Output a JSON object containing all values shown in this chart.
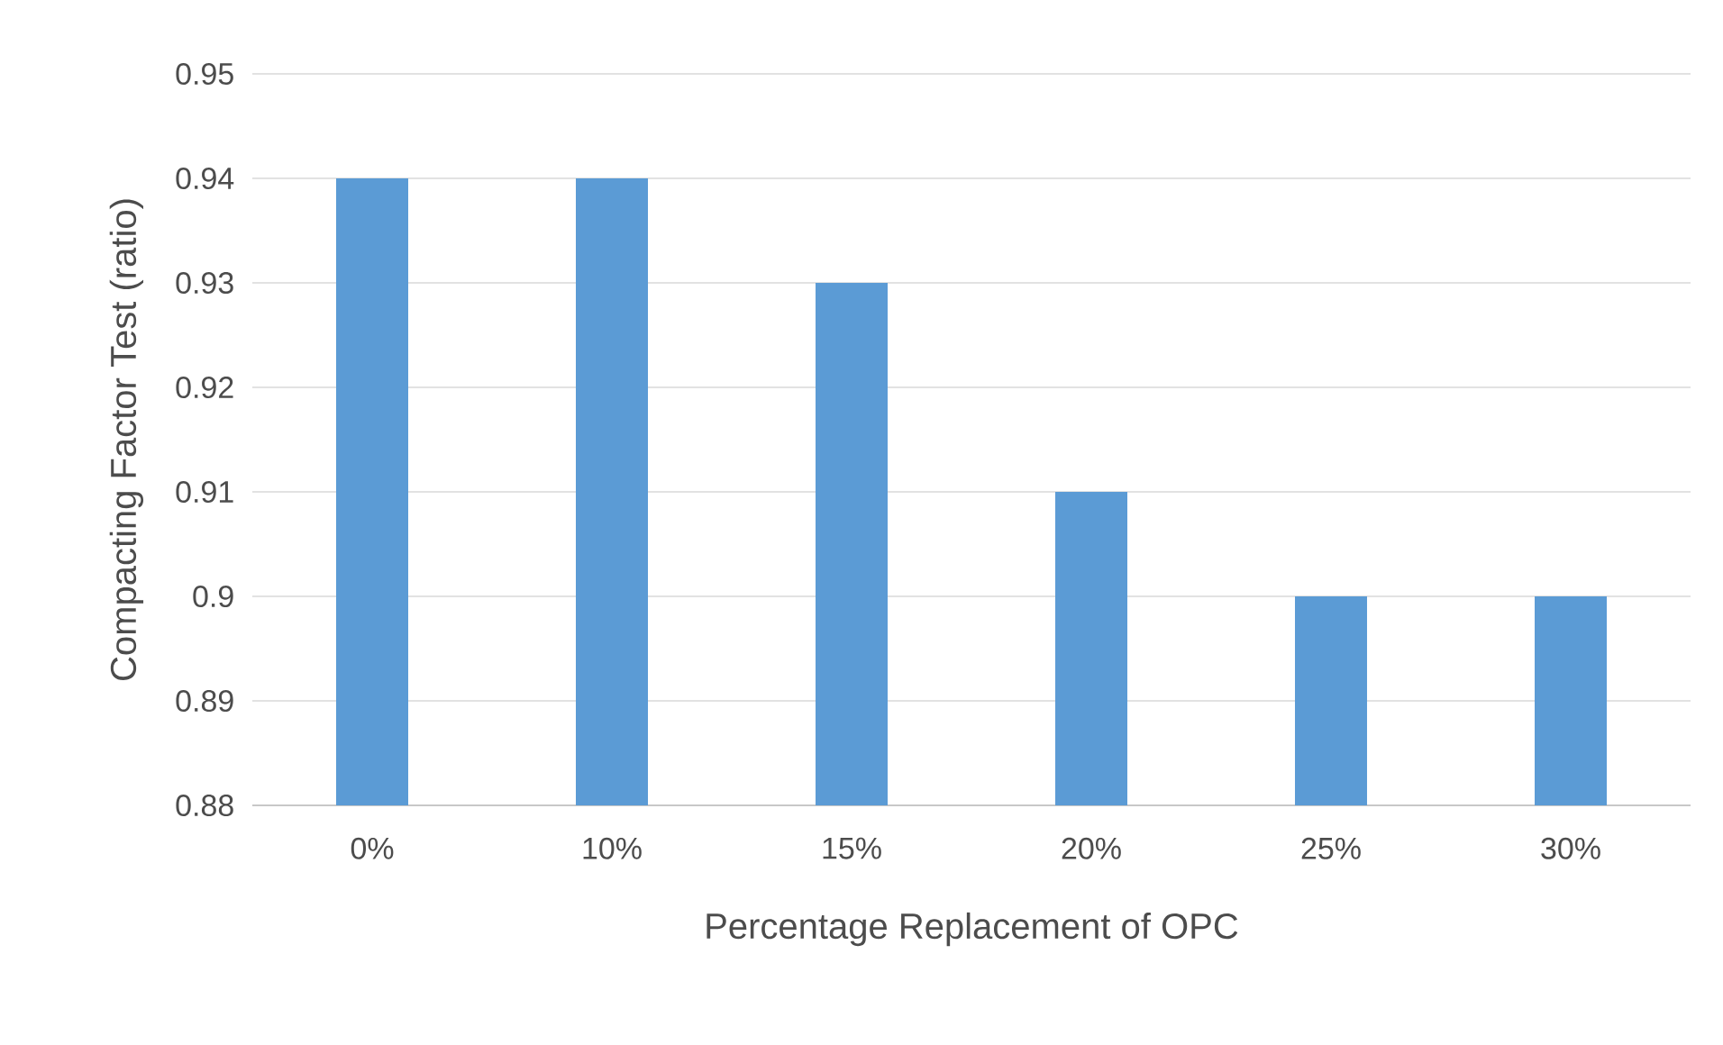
{
  "chart_data": {
    "type": "bar",
    "xlabel": "Percentage Replacement of OPC",
    "ylabel": "Compacting Factor Test (ratio)",
    "categories": [
      "0%",
      "10%",
      "15%",
      "20%",
      "25%",
      "30%"
    ],
    "values": [
      0.94,
      0.94,
      0.93,
      0.91,
      0.9,
      0.9
    ],
    "color": "#5b9bd5",
    "ylim": [
      0.88,
      0.95
    ],
    "yticks": [
      0.88,
      0.89,
      0.9,
      0.91,
      0.92,
      0.93,
      0.94,
      0.95
    ],
    "grid": "y"
  }
}
